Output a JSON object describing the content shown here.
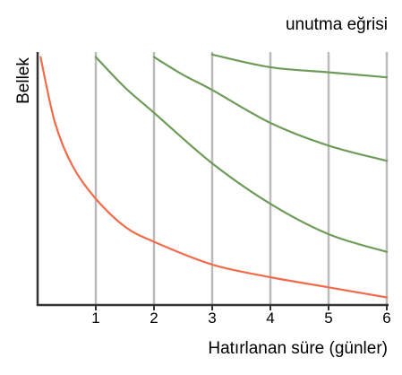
{
  "chart_data": {
    "type": "line",
    "title": "unutma eğrisi",
    "xlabel": "Hatırlanan süre (günler)",
    "ylabel": "Bellek",
    "xlim": [
      0,
      6
    ],
    "ylim": [
      0,
      1
    ],
    "xticks": [
      "1",
      "2",
      "3",
      "4",
      "5",
      "6"
    ],
    "grid": "vertical lines at x = 1..6",
    "colors": {
      "initial_curve": "#f26b4a",
      "review_curves": "#6d9b58",
      "gridlines": "#bbbbbb",
      "axes": "#333333"
    },
    "series": [
      {
        "points": [
          [
            0.05,
            0.98
          ],
          [
            0.3,
            0.72
          ],
          [
            0.6,
            0.55
          ],
          [
            1.0,
            0.42
          ],
          [
            1.5,
            0.31
          ],
          [
            2.0,
            0.25
          ],
          [
            3.0,
            0.16
          ],
          [
            4.0,
            0.11
          ],
          [
            5.0,
            0.07
          ],
          [
            6.0,
            0.03
          ]
        ]
      },
      {
        "points": [
          [
            1.0,
            0.98
          ],
          [
            1.5,
            0.86
          ],
          [
            2.0,
            0.76
          ],
          [
            3.0,
            0.56
          ],
          [
            4.0,
            0.4
          ],
          [
            5.0,
            0.28
          ],
          [
            6.0,
            0.21
          ]
        ]
      },
      {
        "points": [
          [
            2.0,
            0.98
          ],
          [
            2.5,
            0.91
          ],
          [
            3.0,
            0.85
          ],
          [
            4.0,
            0.72
          ],
          [
            5.0,
            0.63
          ],
          [
            6.0,
            0.57
          ]
        ]
      },
      {
        "points": [
          [
            3.0,
            0.99
          ],
          [
            4.0,
            0.94
          ],
          [
            5.0,
            0.92
          ],
          [
            6.0,
            0.9
          ]
        ]
      }
    ]
  }
}
